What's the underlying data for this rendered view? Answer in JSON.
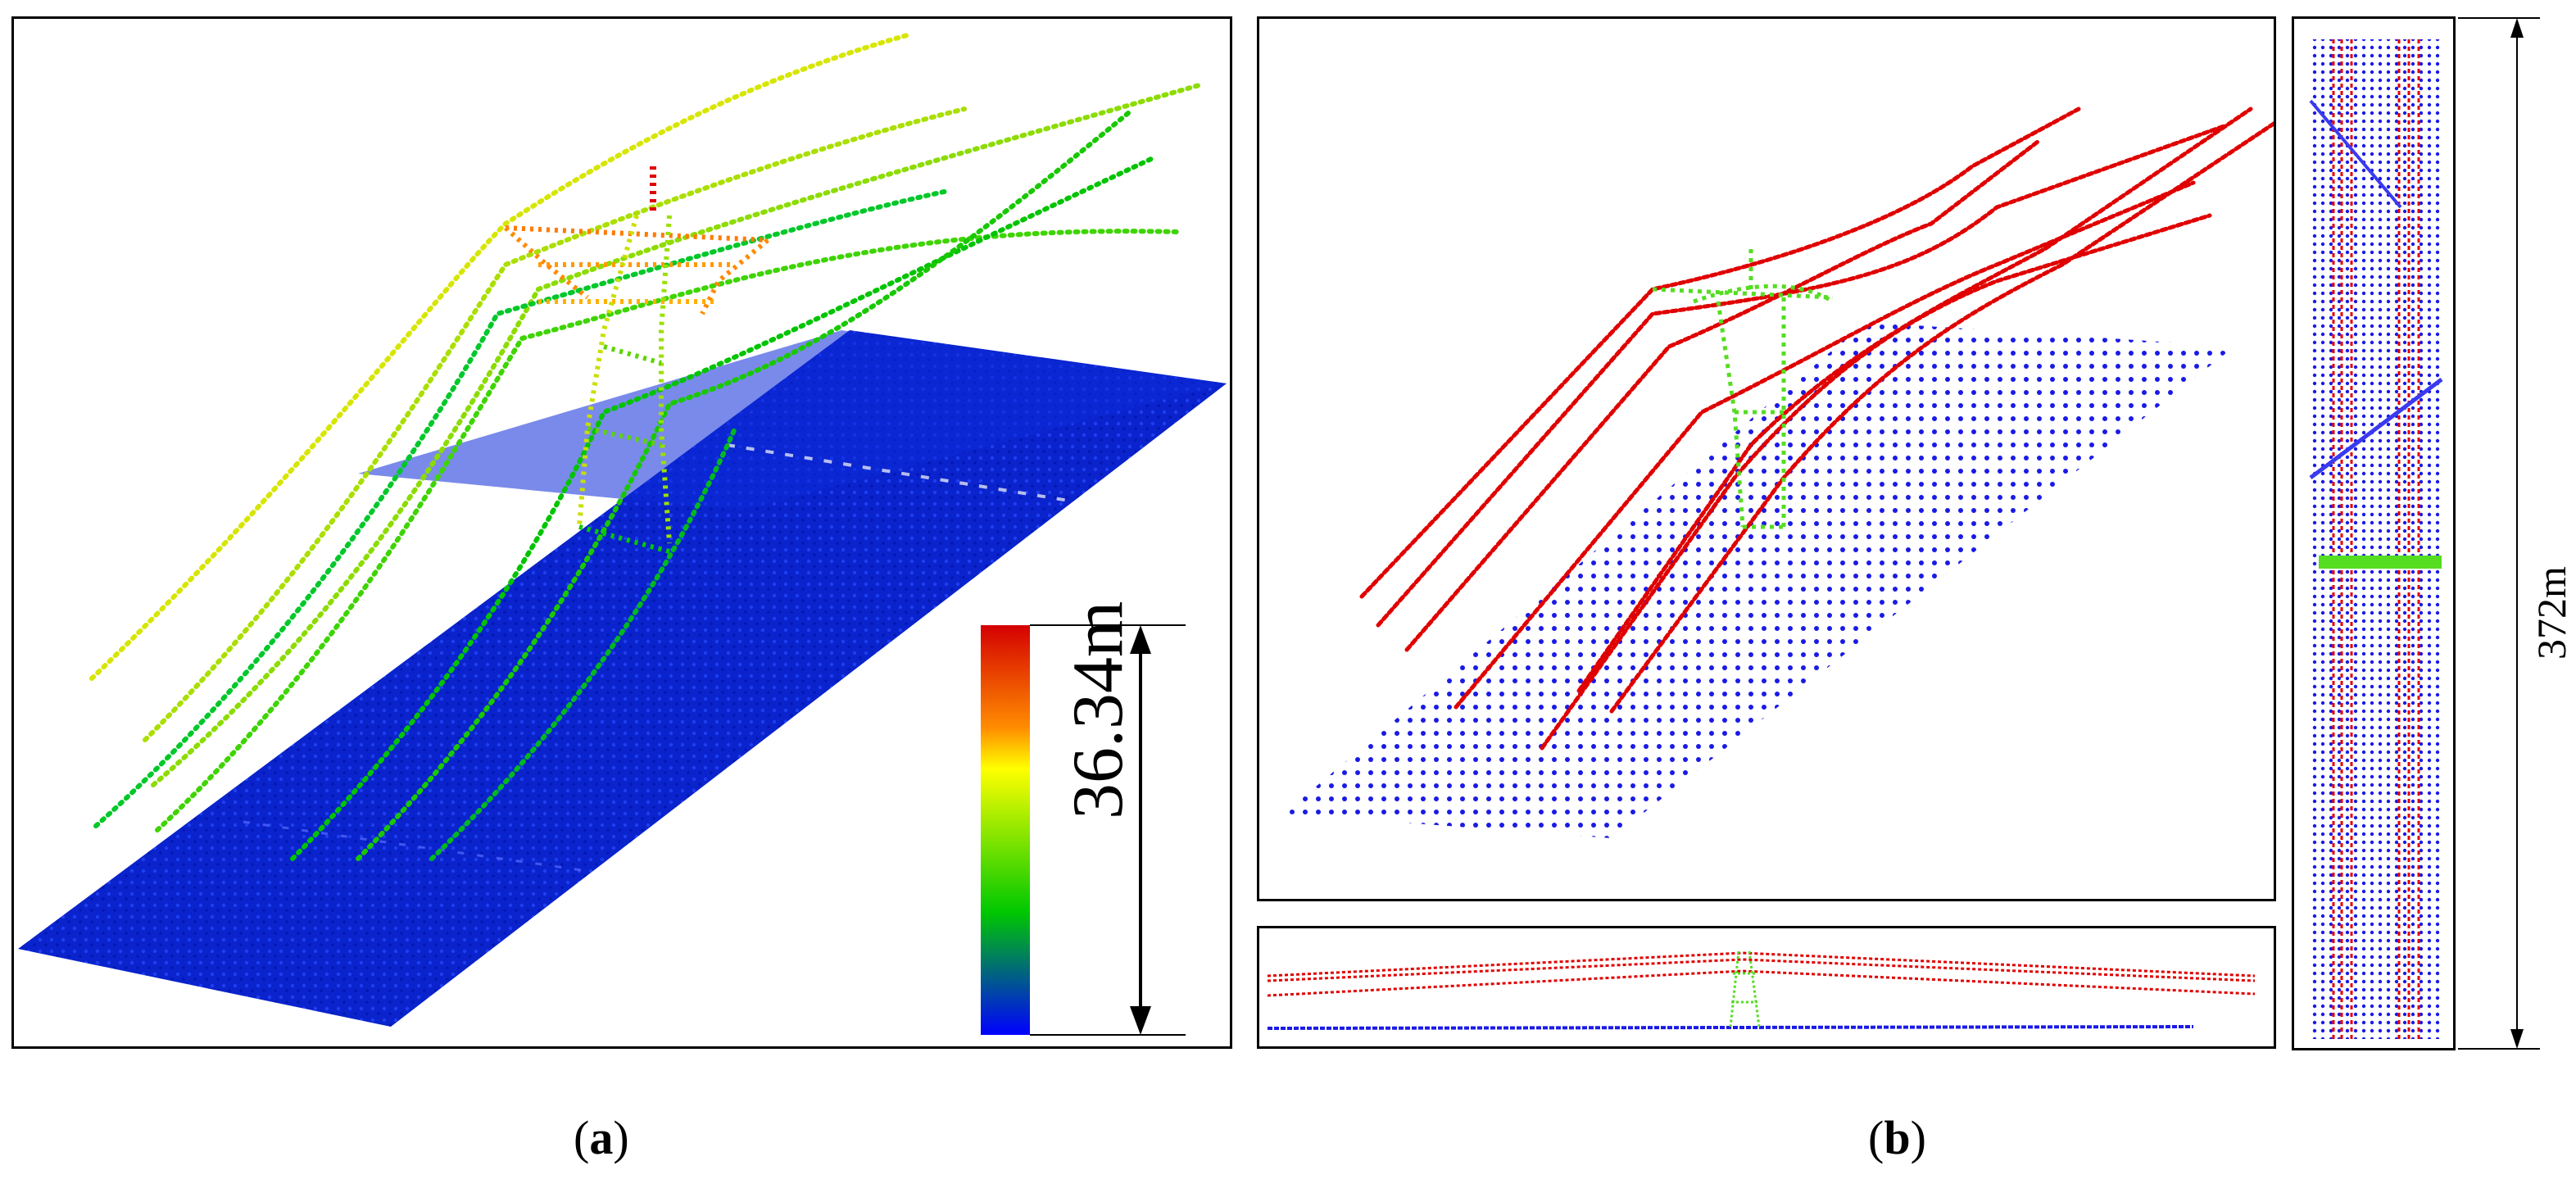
{
  "figure": {
    "panel_a": {
      "height_label": "36.34m",
      "caption_letter": "a",
      "colorbar": [
        "#d40000",
        "#ff7a00",
        "#ffff00",
        "#00c800",
        "#0000ff"
      ]
    },
    "panel_b": {
      "length_label": "372m",
      "caption_letter": "b",
      "classes": {
        "ground_color": "#1a1ae6",
        "powerline_color": "#e00000",
        "tower_color": "#55dd22"
      }
    }
  }
}
